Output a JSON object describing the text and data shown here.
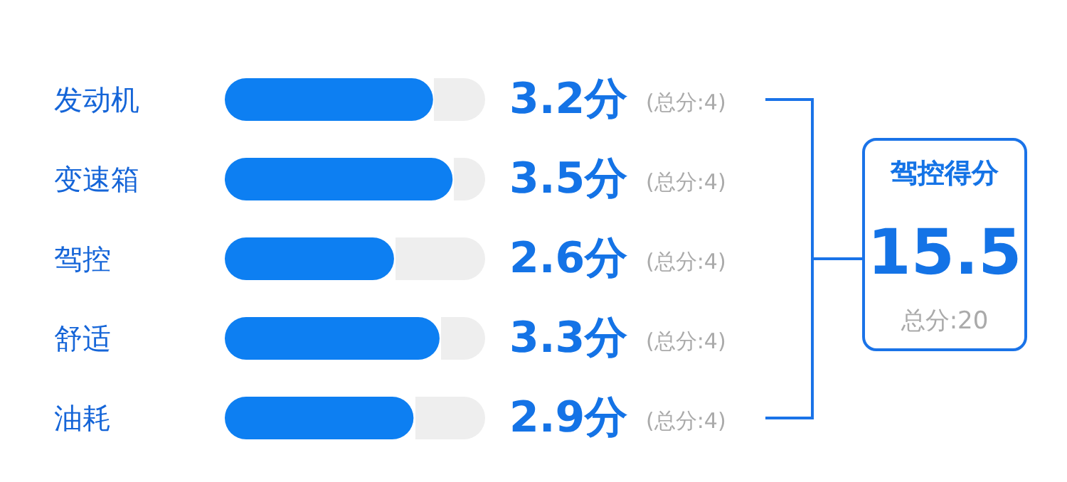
{
  "chart_data": {
    "type": "bar",
    "orientation": "horizontal",
    "categories": [
      "发动机",
      "变速箱",
      "驾控",
      "舒适",
      "油耗"
    ],
    "values": [
      3.2,
      3.5,
      2.6,
      3.3,
      2.9
    ],
    "value_labels": [
      "3.2分",
      "3.5分",
      "2.6分",
      "3.3分",
      "2.9分"
    ],
    "color": "#0d7ff2",
    "xlim": [
      0,
      4
    ],
    "tick_labels": "y",
    "annotations": [
      "驾控得分",
      "15.5",
      "总分:20",
      "(总分:4)",
      "(总分:4)",
      "(总分:4)",
      "(总分:4)",
      "(总分:4)"
    ]
  }
}
